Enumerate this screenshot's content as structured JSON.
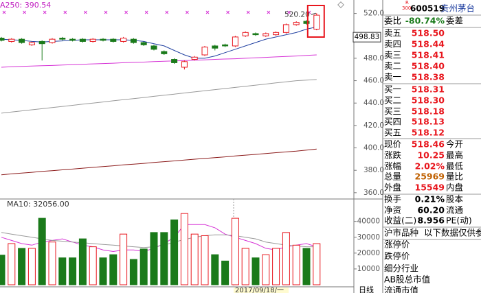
{
  "chart": {
    "indicator": "A250: 390.54",
    "high_label": "520.20",
    "price_label": "498.83",
    "price_label_value": 498.83,
    "volume_label": "MA10: 32056.00",
    "date_label": "2017/09/18/一",
    "period": "日线",
    "ylim": [
      355,
      532
    ],
    "yticks": [
      {
        "value": 520,
        "label": "520.0"
      },
      {
        "value": 480,
        "label": "480.0"
      },
      {
        "value": 460,
        "label": "460.0"
      },
      {
        "value": 440,
        "label": "440.0"
      },
      {
        "value": 420,
        "label": "420.0"
      },
      {
        "value": 400,
        "label": "400.0"
      },
      {
        "value": 380,
        "label": "380.0"
      },
      {
        "value": 360,
        "label": "360.0"
      }
    ],
    "vol_ylim": [
      0,
      52000
    ],
    "vol_ticks": [
      40000,
      30000,
      20000,
      10000
    ],
    "up_color": "#e8161d",
    "down_color": "#1a7a1a",
    "candles": [
      {
        "open": 498,
        "close": 496,
        "high": 499,
        "low": 495,
        "volume": 18700
      },
      {
        "open": 495,
        "close": 497,
        "high": 498,
        "low": 494,
        "volume": 26000
      },
      {
        "open": 497,
        "close": 494,
        "high": 498,
        "low": 493,
        "volume": 23000
      },
      {
        "open": 492,
        "close": 494,
        "high": 495,
        "low": 491,
        "volume": 23000
      },
      {
        "open": 495,
        "close": 493,
        "high": 496,
        "low": 478,
        "volume": 42000
      },
      {
        "open": 494,
        "close": 497,
        "high": 498,
        "low": 493,
        "volume": 27000
      },
      {
        "open": 498,
        "close": 497,
        "high": 499,
        "low": 496,
        "volume": 17000
      },
      {
        "open": 497,
        "close": 496,
        "high": 498,
        "low": 495,
        "volume": 17000
      },
      {
        "open": 497,
        "close": 495,
        "high": 498,
        "low": 494,
        "volume": 29000
      },
      {
        "open": 495,
        "close": 497,
        "high": 498,
        "low": 494,
        "volume": 24000
      },
      {
        "open": 497,
        "close": 496,
        "high": 498,
        "low": 495,
        "volume": 17000
      },
      {
        "open": 497,
        "close": 495,
        "high": 498,
        "low": 494,
        "volume": 19000
      },
      {
        "open": 495,
        "close": 498,
        "high": 499,
        "low": 494,
        "volume": 32000
      },
      {
        "open": 497,
        "close": 494,
        "high": 498,
        "low": 493,
        "volume": 16000
      },
      {
        "open": 494,
        "close": 492,
        "high": 495,
        "low": 491,
        "volume": 22600
      },
      {
        "open": 491,
        "close": 488,
        "high": 492,
        "low": 487,
        "volume": 33000
      },
      {
        "open": 486,
        "close": 484,
        "high": 487,
        "low": 483,
        "volume": 33000
      },
      {
        "open": 479,
        "close": 476,
        "high": 480,
        "low": 475,
        "volume": 41000
      },
      {
        "open": 472,
        "close": 477,
        "high": 478,
        "low": 470,
        "volume": 45000
      },
      {
        "open": 479,
        "close": 481,
        "high": 482,
        "low": 478,
        "volume": 32000
      },
      {
        "open": 483,
        "close": 490,
        "high": 491,
        "low": 482,
        "volume": 31000
      },
      {
        "open": 491,
        "close": 489,
        "high": 492,
        "low": 487,
        "volume": 19000
      },
      {
        "open": 492,
        "close": 491,
        "high": 493,
        "low": 490,
        "volume": 15000
      },
      {
        "open": 491,
        "close": 499,
        "high": 500,
        "low": 490,
        "volume": 42000
      },
      {
        "open": 500,
        "close": 503,
        "high": 504,
        "low": 499,
        "volume": 23000
      },
      {
        "open": 502,
        "close": 501,
        "high": 503,
        "low": 500,
        "volume": 17000
      },
      {
        "open": 500,
        "close": 502,
        "high": 503,
        "low": 499,
        "volume": 19000
      },
      {
        "open": 501,
        "close": 503,
        "high": 504,
        "low": 500,
        "volume": 23000
      },
      {
        "open": 503,
        "close": 510,
        "high": 511,
        "low": 502,
        "volume": 33000
      },
      {
        "open": 510,
        "close": 512,
        "high": 513,
        "low": 509,
        "volume": 25000
      },
      {
        "open": 513,
        "close": 511,
        "high": 514,
        "low": 510,
        "volume": 23000
      },
      {
        "open": 506,
        "close": 518.46,
        "high": 520.2,
        "low": 505,
        "volume": 25969
      }
    ],
    "ma_lines": [
      {
        "color": "#1f3fa0",
        "values": [
          497,
          496.5,
          496,
          495,
          494.5,
          495,
          495.5,
          496,
          496.5,
          496.5,
          496.5,
          496.5,
          496.5,
          496,
          495,
          493,
          491,
          487,
          483,
          480,
          480,
          482,
          485,
          488,
          491,
          494,
          497,
          499,
          501,
          503,
          506,
          508
        ]
      },
      {
        "color": "#d633d6",
        "values": [
          472,
          472.4,
          472.7,
          473,
          473.3,
          473.6,
          474,
          474.3,
          474.6,
          475,
          475.3,
          475.6,
          476,
          476.3,
          476.6,
          477,
          477.3,
          477.6,
          478,
          478.3,
          478.6,
          479,
          479.3,
          479.6,
          480,
          480.4,
          480.8,
          481.2,
          481.6,
          482,
          482.5,
          483
        ]
      },
      {
        "color": "#999999",
        "values": [
          431,
          432,
          433,
          434,
          435,
          436,
          437,
          438,
          439,
          440,
          441,
          442,
          443,
          444,
          445,
          446,
          447,
          448,
          449,
          450,
          451,
          452,
          453,
          454,
          455,
          456,
          457,
          458,
          459,
          460,
          460.5,
          461
        ]
      },
      {
        "color": "#8b1a1a",
        "values": [
          376,
          376.8,
          377.5,
          378.2,
          379,
          379.7,
          380.4,
          381.1,
          381.9,
          382.6,
          383.3,
          384,
          384.8,
          385.5,
          386.2,
          387,
          387.7,
          388.4,
          389.1,
          389.9,
          390.6,
          391.3,
          392,
          392.8,
          393.5,
          394.2,
          395,
          395.7,
          396.4,
          397.1,
          398,
          399
        ]
      }
    ],
    "vol_ma_lines": [
      {
        "color": "#d633d6",
        "values": [
          30000,
          28000,
          26000,
          25000,
          27000,
          28000,
          29000,
          27000,
          25000,
          24000,
          22000,
          21000,
          22000,
          22000,
          21000,
          23000,
          26000,
          30000,
          38000,
          38000,
          38000,
          36000,
          32000,
          30000,
          28000,
          26000,
          23000,
          22000,
          24000,
          25000,
          26000,
          24000
        ]
      },
      {
        "color": "#999999",
        "values": [
          33000,
          32000,
          31000,
          30000,
          29000,
          28000,
          27500,
          27000,
          26500,
          26000,
          25500,
          25000,
          24500,
          24000,
          23500,
          24000,
          25000,
          27000,
          28500,
          30000,
          31000,
          31500,
          31500,
          31000,
          30000,
          29000,
          27000,
          26000,
          25000,
          24500,
          24000,
          24000
        ]
      }
    ]
  },
  "quote": {
    "badge": [
      "R",
      "300"
    ],
    "code": "600519",
    "name": "贵州茅台",
    "rows": [
      {
        "label": "委比",
        "value": "-80.74%",
        "label2": "委差",
        "color": "#1a7a1a"
      },
      {
        "label": "卖五",
        "value": "518.50",
        "color": "#e8161d"
      },
      {
        "label": "卖四",
        "value": "518.44",
        "color": "#e8161d"
      },
      {
        "label": "卖三",
        "value": "518.41",
        "color": "#e8161d"
      },
      {
        "label": "卖二",
        "value": "518.40",
        "color": "#e8161d"
      },
      {
        "label": "卖一",
        "value": "518.38",
        "color": "#e8161d"
      },
      {
        "label": "买一",
        "value": "518.31",
        "color": "#e8161d"
      },
      {
        "label": "买二",
        "value": "518.30",
        "color": "#e8161d"
      },
      {
        "label": "买三",
        "value": "518.18",
        "color": "#e8161d"
      },
      {
        "label": "买四",
        "value": "518.13",
        "color": "#e8161d"
      },
      {
        "label": "买五",
        "value": "518.12",
        "color": "#e8161d"
      },
      {
        "label": "现价",
        "value": "518.46",
        "label2": "今开",
        "color": "#e8161d"
      },
      {
        "label": "涨跌",
        "value": "10.25",
        "label2": "最高",
        "color": "#e8161d"
      },
      {
        "label": "涨幅",
        "value": "2.02%",
        "label2": "最低",
        "color": "#e8161d"
      },
      {
        "label": "总量",
        "value": "25969",
        "label2": "量比",
        "color": "#c06000"
      },
      {
        "label": "外盘",
        "value": "15549",
        "label2": "内盘",
        "color": "#e8161d"
      },
      {
        "label": "换手",
        "value": "0.21%",
        "label2": "股本",
        "color": "#000000"
      },
      {
        "label": "净资",
        "value": "60.20",
        "label2": "流通",
        "color": "#000000"
      },
      {
        "label": "收益(二)",
        "value": "8.956",
        "label2": "PE(动)",
        "color": "#000000"
      },
      {
        "label": "沪市品种",
        "label2": "以下数据仅供参考",
        "color": "#000000"
      },
      {
        "label": "涨停价",
        "color": "#000000"
      },
      {
        "label": "跌停价",
        "color": "#000000"
      },
      {
        "label": "细分行业",
        "color": "#000000"
      },
      {
        "label": "AB股总市值",
        "color": "#000000"
      },
      {
        "label": "流通市值",
        "color": "#000000"
      }
    ]
  }
}
